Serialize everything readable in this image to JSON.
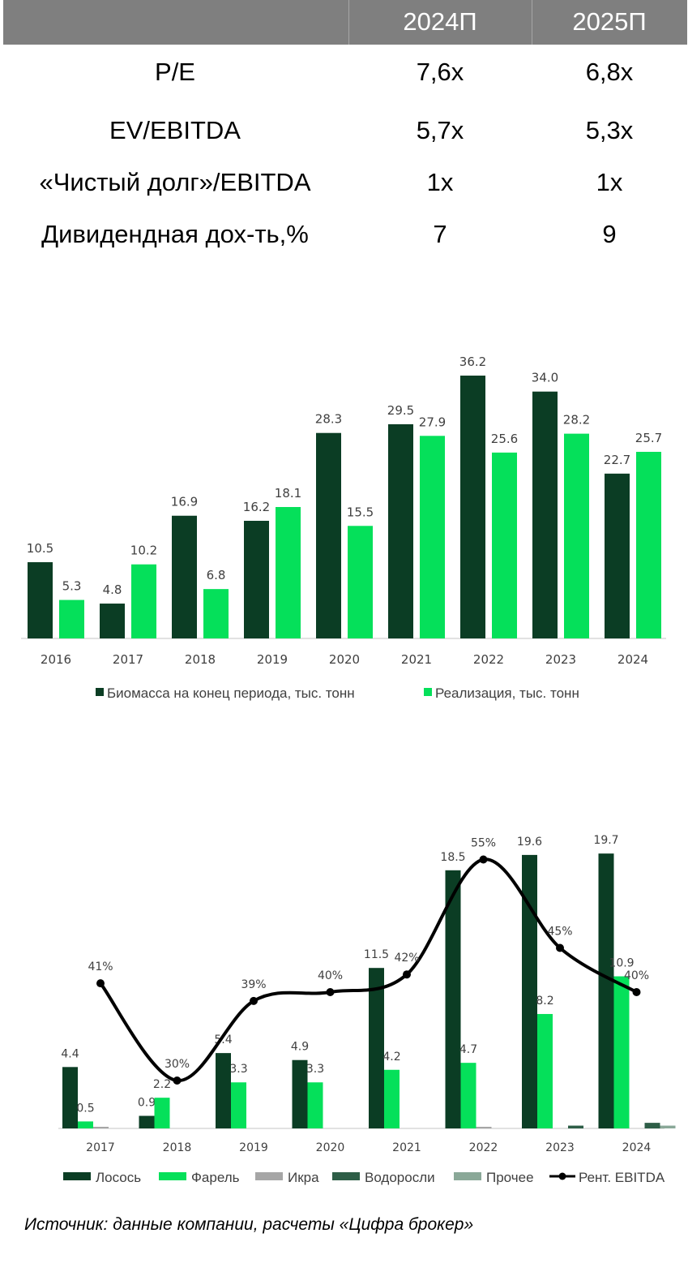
{
  "table": {
    "headers": [
      "",
      "2024П",
      "2025П"
    ],
    "rows": [
      {
        "label": "P/E",
        "v1": "7,6x",
        "v2": "6,8x"
      },
      {
        "label": "EV/EBITDA",
        "v1": "5,7x",
        "v2": "5,3x"
      },
      {
        "label": "«Чистый долг»/EBITDA",
        "v1": "1x",
        "v2": "1x"
      },
      {
        "label": "Дивидендная дох-ть,%",
        "v1": "7",
        "v2": "9"
      }
    ],
    "header_color": "#7f7f7f"
  },
  "chart_data": [
    {
      "type": "bar",
      "title": "",
      "categories": [
        "2016",
        "2017",
        "2018",
        "2019",
        "2020",
        "2021",
        "2022",
        "2023",
        "2024"
      ],
      "series": [
        {
          "name": "Биомасса на конец периода, тыс. тонн",
          "color": "#0b3d24",
          "values": [
            10.5,
            4.8,
            16.9,
            16.2,
            28.3,
            29.5,
            36.2,
            34.0,
            22.7
          ],
          "labels": [
            "10.5",
            "4.8",
            "16.9",
            "16.2",
            "28.3",
            "29.5",
            "36.2",
            "34.0",
            "22.7"
          ]
        },
        {
          "name": "Реализация, тыс. тонн",
          "color": "#05e05a",
          "values": [
            5.3,
            10.2,
            6.8,
            18.1,
            15.5,
            27.9,
            25.6,
            28.2,
            25.7
          ],
          "labels": [
            "5.3",
            "10.2",
            "6.8",
            "18.1",
            "15.5",
            "27.9",
            "25.6",
            "28.2",
            "25.7"
          ]
        }
      ],
      "legend": "bottom",
      "grid": false
    },
    {
      "type": "bar",
      "title": "",
      "categories": [
        "2017",
        "2018",
        "2019",
        "2020",
        "2021",
        "2022",
        "2023",
        "2024"
      ],
      "series": [
        {
          "name": "Лосось",
          "color": "#0b3d24",
          "values": [
            4.4,
            0.9,
            5.4,
            4.9,
            11.5,
            18.5,
            19.6,
            19.7
          ],
          "labels": [
            "4.4",
            "0.9",
            "5.4",
            "4.9",
            "11.5",
            "18.5",
            "19.6",
            "19.7"
          ]
        },
        {
          "name": "Фарель",
          "color": "#05e05a",
          "values": [
            0.5,
            2.2,
            3.3,
            3.3,
            4.2,
            4.7,
            8.2,
            10.9
          ],
          "labels": [
            "0.5",
            "2.2",
            "3.3",
            "3.3",
            "4.2",
            "4.7",
            "8.2",
            "10.9"
          ]
        },
        {
          "name": "Икра",
          "color": "#a6a6a6",
          "values": [
            0.05,
            0,
            0,
            0,
            0,
            0.05,
            0,
            0
          ]
        },
        {
          "name": "Водоросли",
          "color": "#2e5e47",
          "values": [
            0,
            0,
            0,
            0,
            0,
            0,
            0.2,
            0.4
          ]
        },
        {
          "name": "Прочее",
          "color": "#8aa898",
          "values": [
            0,
            0,
            0,
            0,
            0,
            0,
            0,
            0.2
          ]
        },
        {
          "name": "Рент. EBITDA",
          "type": "line",
          "color": "#000000",
          "values": [
            41,
            30,
            39,
            40,
            42,
            55,
            45,
            40
          ],
          "labels": [
            "41%",
            "30%",
            "39%",
            "40%",
            "42%",
            "55%",
            "45%",
            "40%"
          ]
        }
      ],
      "legend": "bottom",
      "grid": false
    }
  ],
  "source": "Источник: данные компании, расчеты «Цифра брокер»"
}
